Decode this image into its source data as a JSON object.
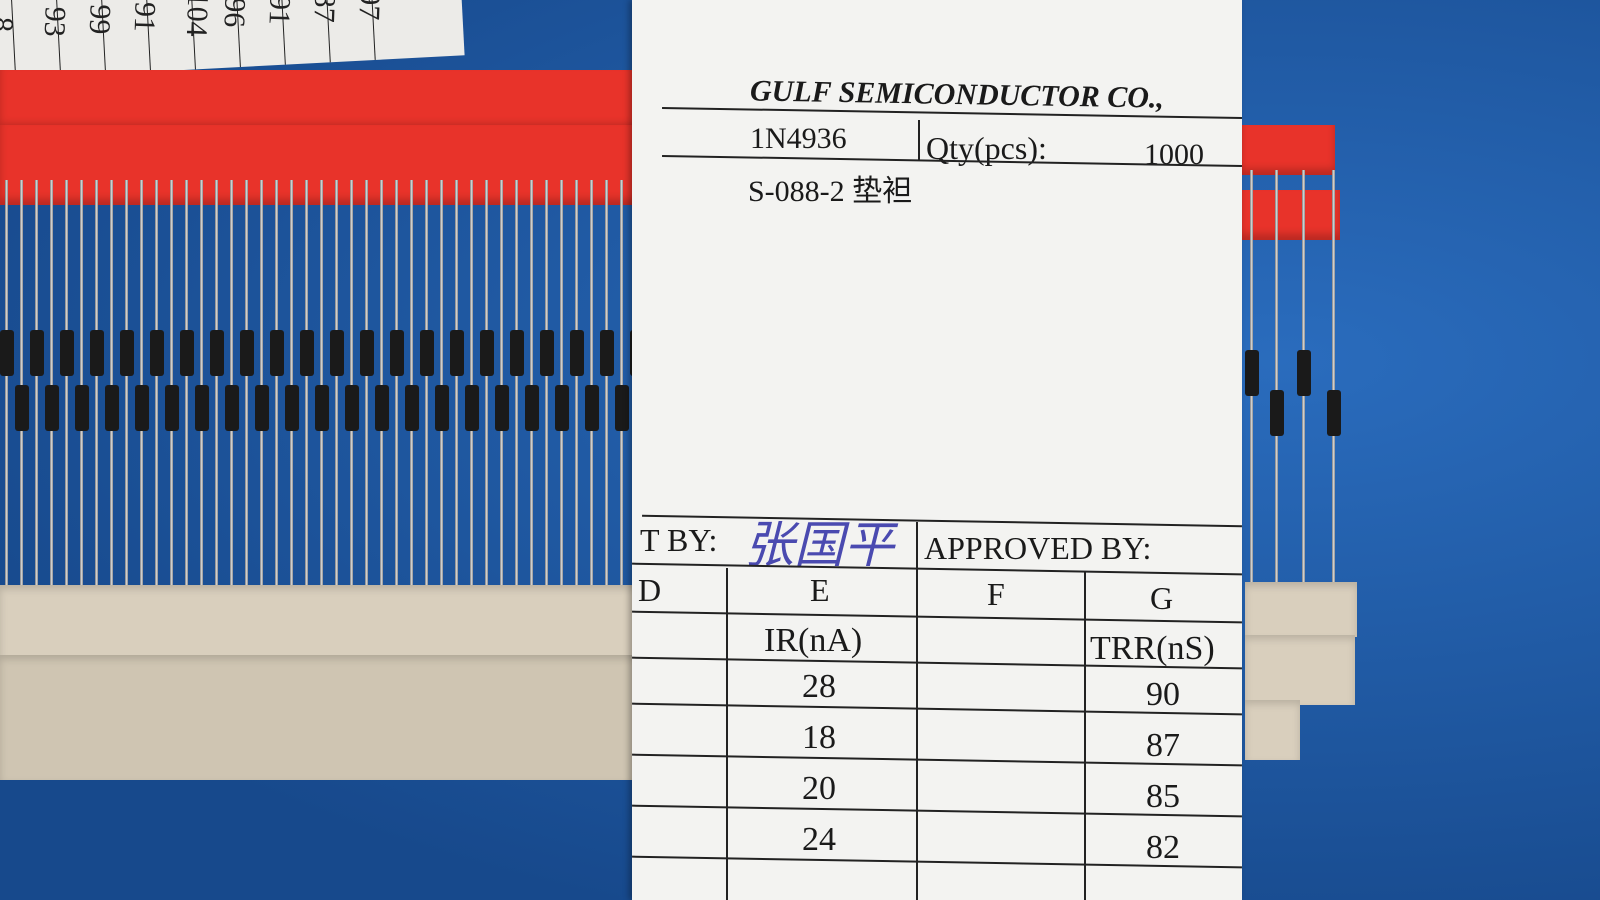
{
  "top_paper_numbers": [
    "8",
    "93",
    "99",
    "91",
    "104",
    "96",
    "91",
    "87",
    "97"
  ],
  "label": {
    "company": "GULF SEMICONDUCTOR CO.,",
    "part_number": "1N4936",
    "qty_label": "Qty(pcs):",
    "qty_value": "1000",
    "lot_code": "S-088-2 垫袒",
    "tested_by_label": "T BY:",
    "tested_by_signature": "张国平",
    "approved_by_label": "APPROVED BY:",
    "columns": [
      {
        "letter": "D",
        "unit": ""
      },
      {
        "letter": "E",
        "unit": "IR(nA)"
      },
      {
        "letter": "F",
        "unit": ""
      },
      {
        "letter": "G",
        "unit": "TRR(nS)"
      }
    ],
    "rows": [
      {
        "E": "28",
        "G": "90"
      },
      {
        "E": "18",
        "G": "87"
      },
      {
        "E": "20",
        "G": "85"
      },
      {
        "E": "24",
        "G": "82"
      }
    ]
  },
  "colors": {
    "background": "#1d5aa6",
    "red_tape": "#e8332a",
    "beige_tape": "#d9cfbd",
    "label_paper": "#f3f3f1"
  }
}
